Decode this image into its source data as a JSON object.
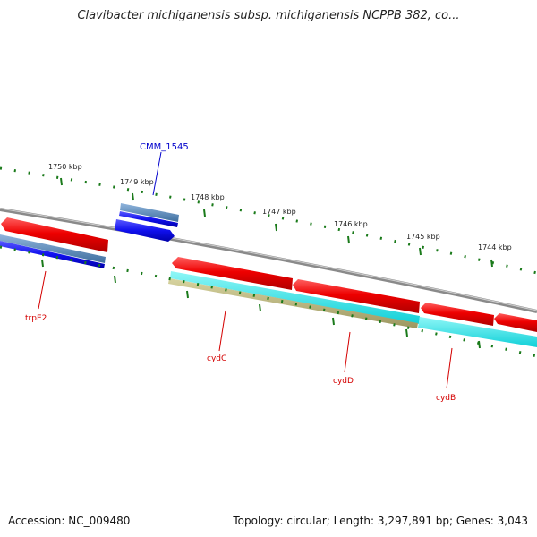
{
  "title": "Clavibacter michiganensis subsp. michiganensis NCPPB 382, co...",
  "footer": {
    "accession": "Accession: NC_009480",
    "summary": "Topology: circular; Length: 3,297,891 bp; Genes: 3,043"
  },
  "scale": {
    "ticks": [
      {
        "label": "1750 kbp",
        "kbp": 1750
      },
      {
        "label": "1749 kbp",
        "kbp": 1749
      },
      {
        "label": "1748 kbp",
        "kbp": 1748
      },
      {
        "label": "1747 kbp",
        "kbp": 1747
      },
      {
        "label": "1746 kbp",
        "kbp": 1746
      },
      {
        "label": "1745 kbp",
        "kbp": 1745
      },
      {
        "label": "1744 kbp",
        "kbp": 1744
      }
    ]
  },
  "genes": [
    {
      "name": "trpE2",
      "color": "#d40000"
    },
    {
      "name": "CMM_1545",
      "color": "#0000cc"
    },
    {
      "name": "cydC",
      "color": "#d40000"
    },
    {
      "name": "cydD",
      "color": "#d40000"
    },
    {
      "name": "cydB",
      "color": "#d40000"
    }
  ],
  "colors": {
    "backbone": "#8a8a8a",
    "cds": "#ee1111",
    "cds_dark_strand": "#1111ee",
    "feature_cyan": "#22e0e0",
    "feature_khaki": "#b8b070",
    "feature_steel": "#5a8ab8",
    "tick_green": "#1a7a1a"
  }
}
